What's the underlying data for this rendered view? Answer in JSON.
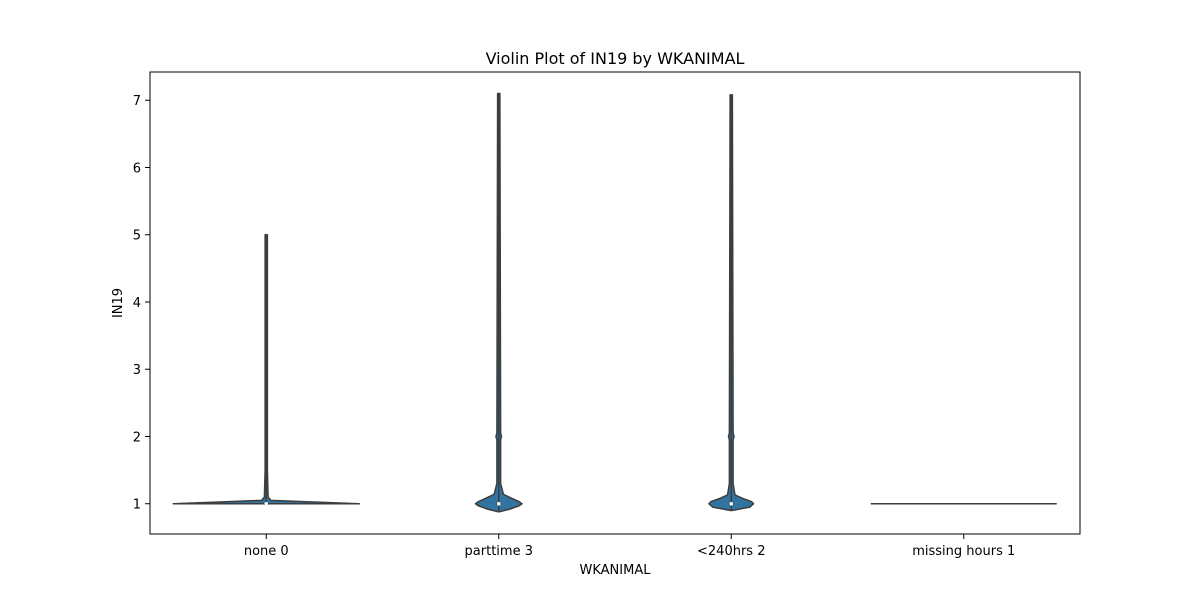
{
  "chart_data": {
    "type": "violin",
    "title": "Violin Plot of IN19 by WKANIMAL",
    "xlabel": "WKANIMAL",
    "ylabel": "IN19",
    "ylim": [
      0.55,
      7.42
    ],
    "yticks": [
      1,
      2,
      3,
      4,
      5,
      6,
      7
    ],
    "ytick_labels": [
      "1",
      "2",
      "3",
      "4",
      "5",
      "6",
      "7"
    ],
    "categories": [
      "none 0",
      "parttime 3",
      "<240hrs 2",
      "missing hours 1"
    ],
    "violins": [
      {
        "category": "none 0",
        "min": 1.0,
        "max": 5.0,
        "median": 1.0,
        "q1": 1.0,
        "q3": 1.0,
        "profile": [
          [
            1.0,
            1.0
          ],
          [
            1.05,
            0.05
          ],
          [
            1.1,
            0.02
          ],
          [
            1.5,
            0.012
          ],
          [
            2.0,
            0.012
          ],
          [
            5.0,
            0.012
          ]
        ]
      },
      {
        "category": "parttime 3",
        "min": 0.88,
        "max": 7.1,
        "median": 1.0,
        "q1": 1.0,
        "q3": 1.0,
        "profile": [
          [
            0.88,
            0.0
          ],
          [
            0.92,
            0.12
          ],
          [
            0.97,
            0.22
          ],
          [
            1.0,
            0.25
          ],
          [
            1.03,
            0.22
          ],
          [
            1.08,
            0.14
          ],
          [
            1.14,
            0.05
          ],
          [
            1.3,
            0.02
          ],
          [
            1.95,
            0.02
          ],
          [
            2.0,
            0.03
          ],
          [
            2.05,
            0.02
          ],
          [
            7.1,
            0.012
          ]
        ]
      },
      {
        "category": "<240hrs 2",
        "min": 0.9,
        "max": 7.08,
        "median": 1.0,
        "q1": 1.0,
        "q3": 1.0,
        "profile": [
          [
            0.9,
            0.0
          ],
          [
            0.95,
            0.2
          ],
          [
            1.0,
            0.24
          ],
          [
            1.03,
            0.22
          ],
          [
            1.08,
            0.12
          ],
          [
            1.13,
            0.04
          ],
          [
            1.3,
            0.02
          ],
          [
            1.95,
            0.02
          ],
          [
            2.0,
            0.03
          ],
          [
            2.05,
            0.02
          ],
          [
            7.08,
            0.012
          ]
        ]
      },
      {
        "category": "missing hours 1",
        "min": 1.0,
        "max": 1.0,
        "median": 1.0,
        "q1": 1.0,
        "q3": 1.0,
        "profile": [
          [
            1.0,
            1.0
          ]
        ]
      }
    ],
    "violin_color": "#3274a1",
    "edge_color": "#3d3d3d",
    "grid": false,
    "legend": "none"
  }
}
